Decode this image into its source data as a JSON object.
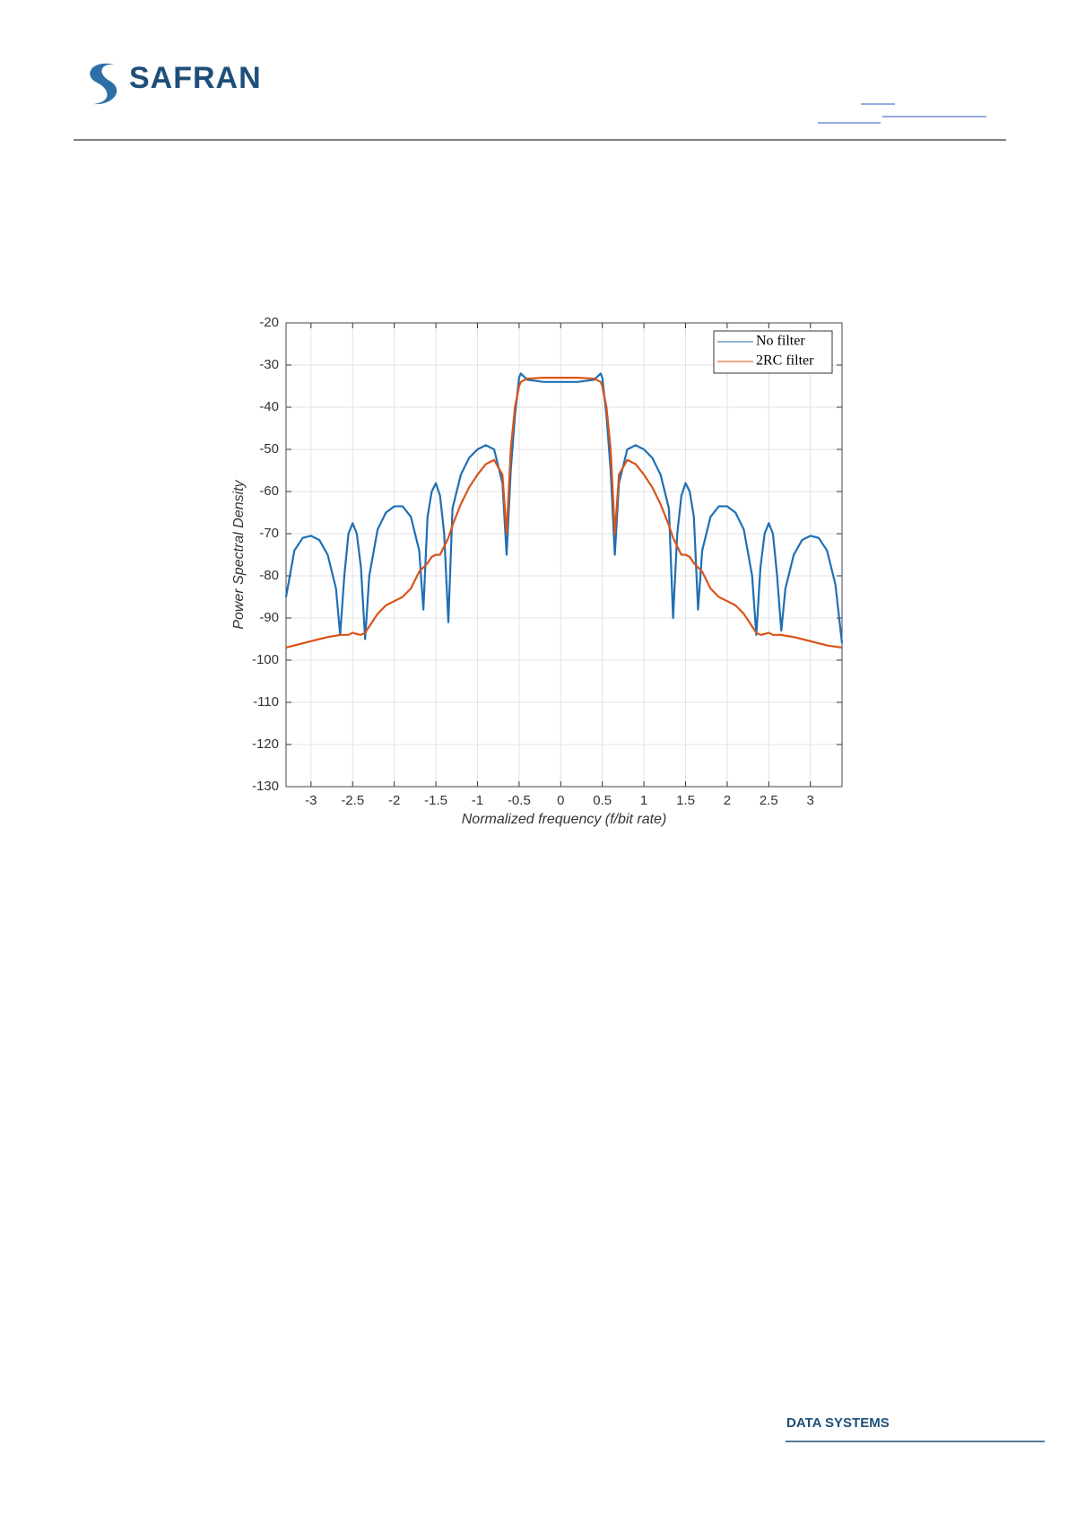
{
  "header": {
    "logo": "SAFRAN"
  },
  "chart_data": {
    "type": "line",
    "xlabel": "Normalized frequency (f/bit rate)",
    "ylabel": "Power Spectral Density",
    "x": [
      -3.3,
      -3.2,
      -3.1,
      -3.0,
      -2.9,
      -2.8,
      -2.7,
      -2.65,
      -2.6,
      -2.55,
      -2.5,
      -2.45,
      -2.4,
      -2.35,
      -2.3,
      -2.2,
      -2.1,
      -2.0,
      -1.9,
      -1.8,
      -1.7,
      -1.65,
      -1.6,
      -1.55,
      -1.5,
      -1.45,
      -1.4,
      -1.35,
      -1.3,
      -1.2,
      -1.1,
      -1.0,
      -0.9,
      -0.8,
      -0.7,
      -0.65,
      -0.6,
      -0.55,
      -0.5,
      -0.48,
      -0.4,
      -0.2,
      0,
      0.2,
      0.4,
      0.48,
      0.5,
      0.55,
      0.6,
      0.65,
      0.7,
      0.8,
      0.9,
      1.0,
      1.1,
      1.2,
      1.3,
      1.35,
      1.4,
      1.45,
      1.5,
      1.55,
      1.6,
      1.65,
      1.7,
      1.8,
      1.9,
      2.0,
      2.1,
      2.2,
      2.3,
      2.35,
      2.4,
      2.45,
      2.5,
      2.55,
      2.6,
      2.65,
      2.7,
      2.8,
      2.9,
      3.0,
      3.1,
      3.2,
      3.3,
      3.38
    ],
    "series": [
      {
        "name": "No filter",
        "color": "#1f6fb4",
        "values": [
          -85,
          -74,
          -71,
          -70.5,
          -71.5,
          -75,
          -83,
          -94,
          -80,
          -70,
          -67.5,
          -70,
          -78,
          -95,
          -80,
          -69,
          -65,
          -63.5,
          -63.5,
          -66,
          -74,
          -88,
          -66,
          -60,
          -58,
          -61,
          -70,
          -91,
          -64,
          -56,
          -52,
          -50,
          -49,
          -50,
          -58,
          -75,
          -55,
          -42,
          -33,
          -32,
          -33.5,
          -34,
          -34,
          -34,
          -33.5,
          -32,
          -33,
          -42,
          -55,
          -75,
          -58,
          -50,
          -49,
          -50,
          -52,
          -56,
          -64,
          -90,
          -70,
          -61,
          -58,
          -60,
          -66,
          -88,
          -74,
          -66,
          -63.5,
          -63.5,
          -65,
          -69,
          -80,
          -94,
          -78,
          -70,
          -67.5,
          -70,
          -80,
          -93,
          -83,
          -75,
          -71.5,
          -70.5,
          -71,
          -74,
          -82,
          -96
        ]
      },
      {
        "name": "2RC filter",
        "color": "#d95319",
        "values": [
          -97,
          -96.5,
          -96,
          -95.5,
          -95,
          -94.5,
          -94.2,
          -94,
          -94,
          -94,
          -93.5,
          -93.8,
          -94,
          -93.5,
          -92,
          -89,
          -87,
          -86,
          -85,
          -83,
          -79,
          -78,
          -77,
          -75.5,
          -75,
          -75,
          -73,
          -71,
          -68,
          -63,
          -59,
          -56,
          -53.5,
          -52.5,
          -56,
          -70,
          -50,
          -40,
          -35,
          -34,
          -33.2,
          -33,
          -33,
          -33,
          -33.2,
          -34,
          -35,
          -40,
          -50,
          -70,
          -56,
          -52.5,
          -53.5,
          -56,
          -59,
          -63,
          -68,
          -71,
          -73,
          -75,
          -75,
          -75.5,
          -77,
          -78,
          -79,
          -83,
          -85,
          -86,
          -87,
          -89,
          -92,
          -93.5,
          -94,
          -93.8,
          -93.5,
          -94,
          -94,
          -94,
          -94.2,
          -94.5,
          -95,
          -95.5,
          -96,
          -96.5,
          -96.8,
          -97
        ]
      }
    ],
    "xlim": [
      -3.3,
      3.38
    ],
    "ylim": [
      -130,
      -20
    ],
    "xticks": [
      -3,
      -2.5,
      -2,
      -1.5,
      -1,
      -0.5,
      0,
      0.5,
      1,
      1.5,
      2,
      2.5,
      3
    ],
    "yticks": [
      -130,
      -120,
      -110,
      -100,
      -90,
      -80,
      -70,
      -60,
      -50,
      -40,
      -30,
      -20
    ],
    "grid": true,
    "legend": "upper right"
  },
  "footer": {
    "brand": "DATA SYSTEMS"
  }
}
